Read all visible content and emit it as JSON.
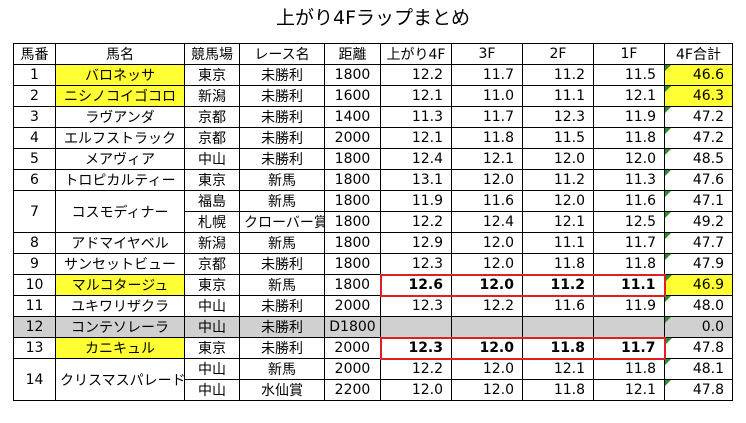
{
  "title": "上がり4Fラップまとめ",
  "headers": [
    "馬番",
    "馬名",
    "競馬場",
    "レース名",
    "距離",
    "上がり4F",
    "3F",
    "2F",
    "1F",
    "4F合計"
  ],
  "rows": [
    {
      "num": "1",
      "name": "バロネッサ",
      "highlight_name": true,
      "races": [
        {
          "venue": "東京",
          "race": "未勝利",
          "dist": "1800",
          "f4": "12.2",
          "f3": "11.7",
          "f2": "11.2",
          "f1": "11.5",
          "total": "46.6",
          "highlight_total": true
        }
      ]
    },
    {
      "num": "2",
      "name": "ニシノコイゴコロ",
      "highlight_name": true,
      "races": [
        {
          "venue": "新潟",
          "race": "未勝利",
          "dist": "1600",
          "f4": "12.1",
          "f3": "11.0",
          "f2": "11.1",
          "f1": "12.1",
          "total": "46.3",
          "highlight_total": true
        }
      ]
    },
    {
      "num": "3",
      "name": "ラヴアンダ",
      "races": [
        {
          "venue": "京都",
          "race": "未勝利",
          "dist": "1400",
          "f4": "11.3",
          "f3": "11.7",
          "f2": "12.3",
          "f1": "11.9",
          "total": "47.2"
        }
      ]
    },
    {
      "num": "4",
      "name": "エルフストラック",
      "races": [
        {
          "venue": "京都",
          "race": "未勝利",
          "dist": "2000",
          "f4": "12.1",
          "f3": "11.8",
          "f2": "11.5",
          "f1": "11.8",
          "total": "47.2"
        }
      ]
    },
    {
      "num": "5",
      "name": "メアヴィア",
      "races": [
        {
          "venue": "中山",
          "race": "未勝利",
          "dist": "1800",
          "f4": "12.4",
          "f3": "12.1",
          "f2": "12.0",
          "f1": "12.0",
          "total": "48.5"
        }
      ]
    },
    {
      "num": "6",
      "name": "トロピカルティー",
      "races": [
        {
          "venue": "東京",
          "race": "新馬",
          "dist": "1800",
          "f4": "13.1",
          "f3": "12.0",
          "f2": "11.2",
          "f1": "11.3",
          "total": "47.6"
        }
      ]
    },
    {
      "num": "7",
      "name": "コスモディナー",
      "races": [
        {
          "venue": "福島",
          "race": "新馬",
          "dist": "1800",
          "f4": "11.9",
          "f3": "11.6",
          "f2": "12.0",
          "f1": "11.6",
          "total": "47.1"
        },
        {
          "venue": "札幌",
          "race": "クローバー賞",
          "dist": "1800",
          "f4": "12.2",
          "f3": "12.4",
          "f2": "12.1",
          "f1": "12.5",
          "total": "49.2"
        }
      ]
    },
    {
      "num": "8",
      "name": "アドマイヤベル",
      "races": [
        {
          "venue": "新潟",
          "race": "新馬",
          "dist": "1800",
          "f4": "12.9",
          "f3": "12.0",
          "f2": "11.1",
          "f1": "11.7",
          "total": "47.7"
        }
      ]
    },
    {
      "num": "9",
      "name": "サンセットビュー",
      "races": [
        {
          "venue": "京都",
          "race": "未勝利",
          "dist": "1800",
          "f4": "12.3",
          "f3": "12.0",
          "f2": "11.8",
          "f1": "11.8",
          "total": "47.9"
        }
      ]
    },
    {
      "num": "10",
      "name": "マルコタージュ",
      "highlight_name": true,
      "races": [
        {
          "venue": "東京",
          "race": "新馬",
          "dist": "1800",
          "f4": "12.6",
          "f3": "12.0",
          "f2": "11.2",
          "f1": "11.1",
          "total": "46.9",
          "boxed": true,
          "highlight_total": true
        }
      ]
    },
    {
      "num": "11",
      "name": "ユキワリザクラ",
      "races": [
        {
          "venue": "中山",
          "race": "未勝利",
          "dist": "2000",
          "f4": "12.3",
          "f3": "12.2",
          "f2": "11.6",
          "f1": "11.9",
          "total": "48.0"
        }
      ]
    },
    {
      "num": "12",
      "name": "コンテソレーラ",
      "gray": true,
      "races": [
        {
          "venue": "中山",
          "race": "未勝利",
          "dist": "D1800",
          "f4": "",
          "f3": "",
          "f2": "",
          "f1": "",
          "total": "0.0"
        }
      ]
    },
    {
      "num": "13",
      "name": "カニキュル",
      "highlight_name": true,
      "races": [
        {
          "venue": "東京",
          "race": "未勝利",
          "dist": "2000",
          "f4": "12.3",
          "f3": "12.0",
          "f2": "11.8",
          "f1": "11.7",
          "total": "47.8",
          "boxed": true
        }
      ]
    },
    {
      "num": "14",
      "name": "クリスマスパレード",
      "races": [
        {
          "venue": "中山",
          "race": "新馬",
          "dist": "2000",
          "f4": "12.2",
          "f3": "12.0",
          "f2": "12.1",
          "f1": "11.8",
          "total": "48.1"
        },
        {
          "venue": "中山",
          "race": "水仙賞",
          "dist": "2200",
          "f4": "12.0",
          "f3": "12.0",
          "f2": "11.8",
          "f1": "12.1",
          "total": "47.8"
        }
      ]
    }
  ]
}
